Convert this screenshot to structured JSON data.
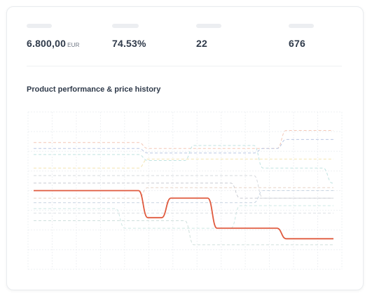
{
  "stats": [
    {
      "value": "6.800,00",
      "unit": "EUR"
    },
    {
      "value": "74.53%",
      "unit": ""
    },
    {
      "value": "22",
      "unit": ""
    },
    {
      "value": "676",
      "unit": ""
    }
  ],
  "chart_title": "Product performance & price history",
  "chart_data": {
    "type": "line",
    "title": "Product performance & price history",
    "xlabel": "",
    "ylabel": "",
    "grid": true,
    "legend": "none",
    "highlight_color": "#e05a3e",
    "x": [
      0,
      1,
      2,
      3,
      4,
      5,
      6,
      7,
      8,
      9,
      10,
      11,
      12,
      13
    ],
    "series": [
      {
        "color": "#e05a3e",
        "highlight": true,
        "values": [
          0.5,
          0.5,
          0.5,
          0.5,
          0.5,
          0.68,
          0.55,
          0.55,
          0.75,
          0.75,
          0.75,
          0.82,
          0.82,
          0.82
        ]
      },
      {
        "color": "#f4c7b6",
        "values": [
          0.18,
          0.18,
          0.18,
          0.18,
          0.18,
          0.22,
          0.22,
          0.22,
          0.22,
          0.22,
          0.22,
          0.1,
          0.1,
          0.1
        ]
      },
      {
        "color": "#b9c7e3",
        "values": [
          0.22,
          0.22,
          0.22,
          0.22,
          0.22,
          0.25,
          0.25,
          0.25,
          0.25,
          0.25,
          0.22,
          0.16,
          0.16,
          0.16
        ]
      },
      {
        "color": "#bfe3e0",
        "values": [
          0.26,
          0.26,
          0.26,
          0.26,
          0.26,
          0.3,
          0.3,
          0.2,
          0.2,
          0.2,
          0.35,
          0.35,
          0.35,
          0.45
        ]
      },
      {
        "color": "#f3e4b0",
        "values": [
          0.35,
          0.35,
          0.35,
          0.35,
          0.35,
          0.29,
          0.29,
          0.29,
          0.29,
          0.29,
          0.29,
          0.29,
          0.29,
          0.29
        ]
      },
      {
        "color": "#d6d9de",
        "values": [
          0.4,
          0.4,
          0.4,
          0.4,
          0.4,
          0.4,
          0.4,
          0.4,
          0.4,
          0.4,
          0.55,
          0.55,
          0.55,
          0.55
        ]
      },
      {
        "color": "#c9cbd2",
        "values": [
          0.45,
          0.45,
          0.45,
          0.45,
          0.45,
          0.45,
          0.45,
          0.45,
          0.45,
          0.55,
          0.55,
          0.55,
          0.55,
          0.55
        ]
      },
      {
        "color": "#e7d3c6",
        "values": [
          0.55,
          0.55,
          0.55,
          0.55,
          0.55,
          0.48,
          0.48,
          0.48,
          0.48,
          0.48,
          0.48,
          0.48,
          0.48,
          0.48
        ]
      },
      {
        "color": "#c7d4e2",
        "values": [
          0.58,
          0.58,
          0.58,
          0.58,
          0.58,
          0.58,
          0.58,
          0.58,
          0.58,
          0.58,
          0.5,
          0.5,
          0.5,
          0.5
        ]
      },
      {
        "color": "#cde8e4",
        "values": [
          0.62,
          0.62,
          0.62,
          0.62,
          0.75,
          0.75,
          0.75,
          0.75,
          0.75,
          0.6,
          0.6,
          0.6,
          0.6,
          0.6
        ]
      },
      {
        "color": "#dcdfe3",
        "values": [
          0.65,
          0.65,
          0.65,
          0.65,
          0.65,
          0.65,
          0.65,
          0.65,
          0.65,
          0.65,
          0.65,
          0.65,
          0.65,
          0.65
        ]
      },
      {
        "color": "#cfe0dc",
        "values": [
          0.7,
          0.7,
          0.7,
          0.7,
          0.7,
          0.7,
          0.7,
          0.86,
          0.86,
          0.86,
          0.86,
          0.86,
          0.86,
          0.86
        ]
      }
    ]
  }
}
